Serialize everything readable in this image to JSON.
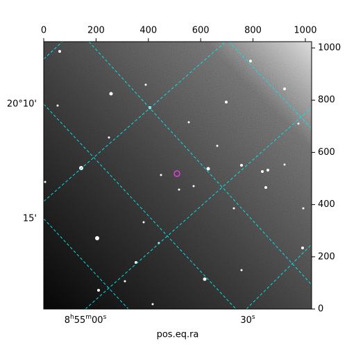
{
  "chart_data": {
    "type": "image",
    "xlim": [
      0,
      1024
    ],
    "ylim": [
      0,
      1024
    ],
    "xticks": [
      0,
      200,
      400,
      600,
      800,
      1000
    ],
    "yticks": [
      0,
      200,
      400,
      600,
      800,
      1000
    ],
    "ra_ticks": [
      "8h55m00s",
      "30s"
    ],
    "dec_ticks": [
      "20°10'",
      "15'"
    ],
    "xlabel": "pos.eq.ra",
    "grid_color": "#00e5e5"
  }
}
